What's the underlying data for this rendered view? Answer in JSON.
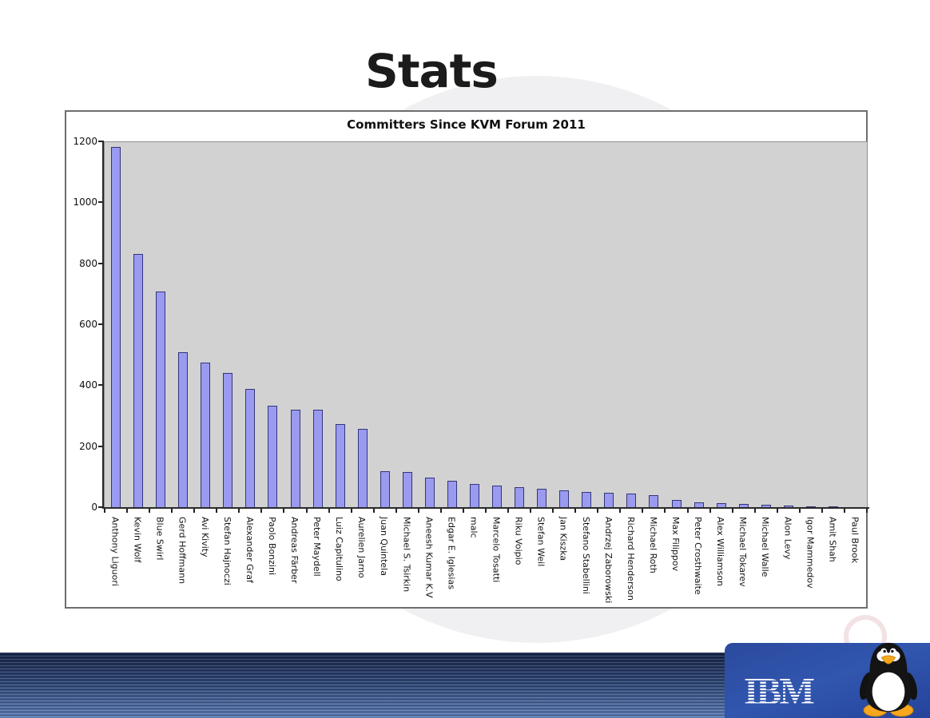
{
  "slide": {
    "title": "Stats"
  },
  "chart_data": {
    "type": "bar",
    "title": "Committers Since KVM Forum 2011",
    "xlabel": "",
    "ylabel": "",
    "ylim": [
      0,
      1200
    ],
    "yticks": [
      0,
      200,
      400,
      600,
      800,
      1000,
      1200
    ],
    "grid": false,
    "legend": false,
    "plot_background": "#d2d2d2",
    "bar_color": "#9a9af0",
    "bar_border_color": "#34347a",
    "categories": [
      "Anthony Liguori",
      "Kevin Wolf",
      "Blue Swirl",
      "Gerd Hoffmann",
      "Avi Kivity",
      "Stefan Hajnoczi",
      "Alexander Graf",
      "Paolo Bonzini",
      "Andreas Färber",
      "Peter Maydell",
      "Luiz Capitulino",
      "Aurelien Jarno",
      "Juan Quintela",
      "Michael S. Tsirkin",
      "Aneesh Kumar K.V",
      "Edgar E. Iglesias",
      "malc",
      "Marcelo Tosatti",
      "Riku Voipio",
      "Stefan Weil",
      "Jan Kiszka",
      "Stefano Stabellini",
      "Andrzej Zaborowski",
      "Richard Henderson",
      "Michael Roth",
      "Max Filippov",
      "Peter Crosthwaite",
      "Alex Williamson",
      "Michael Tokarev",
      "Michael Walle",
      "Alon Levy",
      "Igor Mammedov",
      "Amit Shah",
      "Paul Brook"
    ],
    "values": [
      1185,
      832,
      710,
      510,
      478,
      442,
      390,
      335,
      323,
      322,
      276,
      259,
      120,
      118,
      100,
      89,
      79,
      74,
      68,
      64,
      58,
      53,
      49,
      46,
      42,
      26,
      19,
      16,
      13,
      11,
      9,
      6,
      5,
      3
    ]
  },
  "footer": {
    "brand": "IBM",
    "mascot_icon": "tux-linux-penguin-icon",
    "bar_color_top": "#17254a",
    "bar_color_bottom": "#5d7cb6",
    "panel_color": "#2b4a9e"
  }
}
